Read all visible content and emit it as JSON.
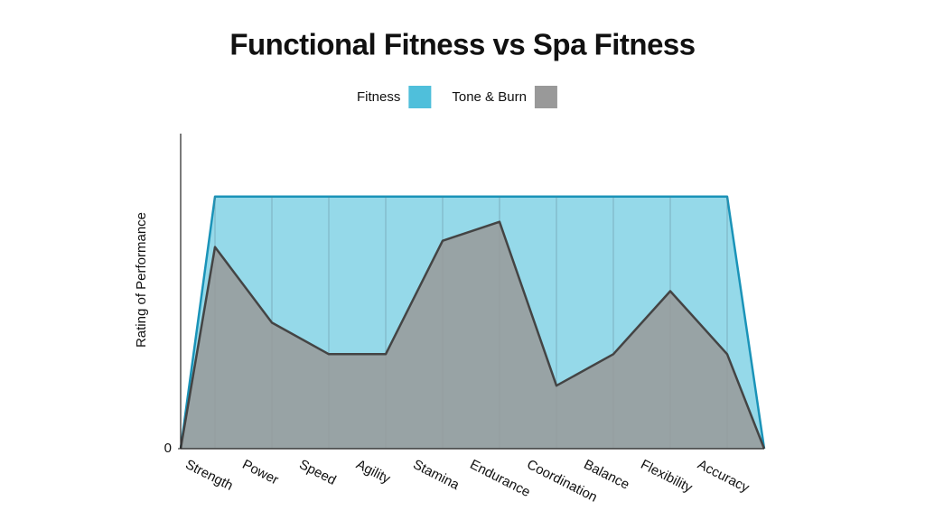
{
  "chart_data": {
    "type": "area",
    "title": "Functional Fitness vs Spa Fitness",
    "y_label": "Rating of Performance",
    "categories": [
      null,
      "Strength",
      "Power",
      "Speed",
      "Agility",
      "Stamina",
      "Endurance",
      "Coordination",
      "Balance",
      "Flexibility",
      "Accuracy",
      null
    ],
    "series": [
      {
        "name": "Fitness",
        "color": "#4fbfdb",
        "values": [
          0,
          8,
          8,
          8,
          8,
          8,
          8,
          8,
          8,
          8,
          8,
          0
        ]
      },
      {
        "name": "Tone & Burn",
        "color": "#999999",
        "values": [
          0,
          6.4,
          4,
          3,
          3,
          6.6,
          7.2,
          2,
          3,
          5,
          3,
          0
        ]
      }
    ],
    "ylim": [
      0,
      10
    ],
    "yticks": [
      0
    ],
    "grid": true
  }
}
